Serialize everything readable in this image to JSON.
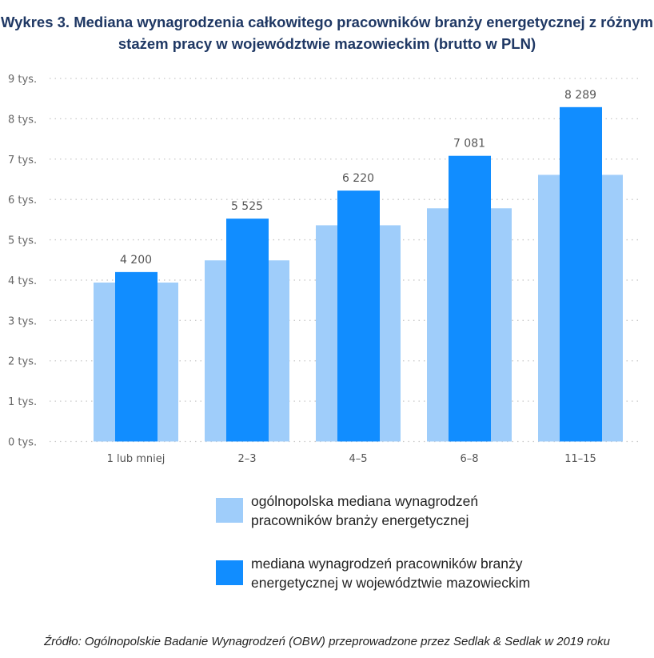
{
  "chart_data": {
    "type": "bar",
    "title": "Wykres 3. Mediana wynagrodzenia całkowitego pracowników branży energetycznej z różnym stażem pracy w województwie mazowieckim (brutto w PLN)",
    "categories": [
      "1 lub mniej",
      "2–3",
      "4–5",
      "6–8",
      "11–15"
    ],
    "series": [
      {
        "name": "ogólnopolska mediana wynagrodzeń pracowników branży energetycznej",
        "values": [
          3940,
          4490,
          5360,
          5780,
          6610
        ],
        "color": "#9fcdfa"
      },
      {
        "name": "mediana wynagrodzeń pracowników branży energetycznej w województwie mazowieckim",
        "values": [
          4200,
          5525,
          6220,
          7081,
          8289
        ],
        "color": "#118dff",
        "data_labels": [
          "4 200",
          "5 525",
          "6 220",
          "7 081",
          "8 289"
        ]
      }
    ],
    "ylim": [
      0,
      9000
    ],
    "yticks": [
      "0 tys.",
      "1 tys.",
      "2 tys.",
      "3 tys.",
      "4 tys.",
      "5 tys.",
      "6 tys.",
      "7 tys.",
      "8 tys.",
      "9 tys."
    ],
    "grid": true,
    "legend": "bottom",
    "xlabel": "",
    "ylabel": ""
  },
  "legend": {
    "light": [
      "ogólnopolska mediana wynagrodzeń",
      "pracowników branży energetycznej"
    ],
    "dark": [
      "mediana wynagrodzeń pracowników branży",
      "energetycznej w województwie mazowieckim"
    ]
  },
  "source": "Źródło: Ogólnopolskie Badanie Wynagrodzeń (OBW) przeprowadzone przez Sedlak & Sedlak w 2019 roku"
}
